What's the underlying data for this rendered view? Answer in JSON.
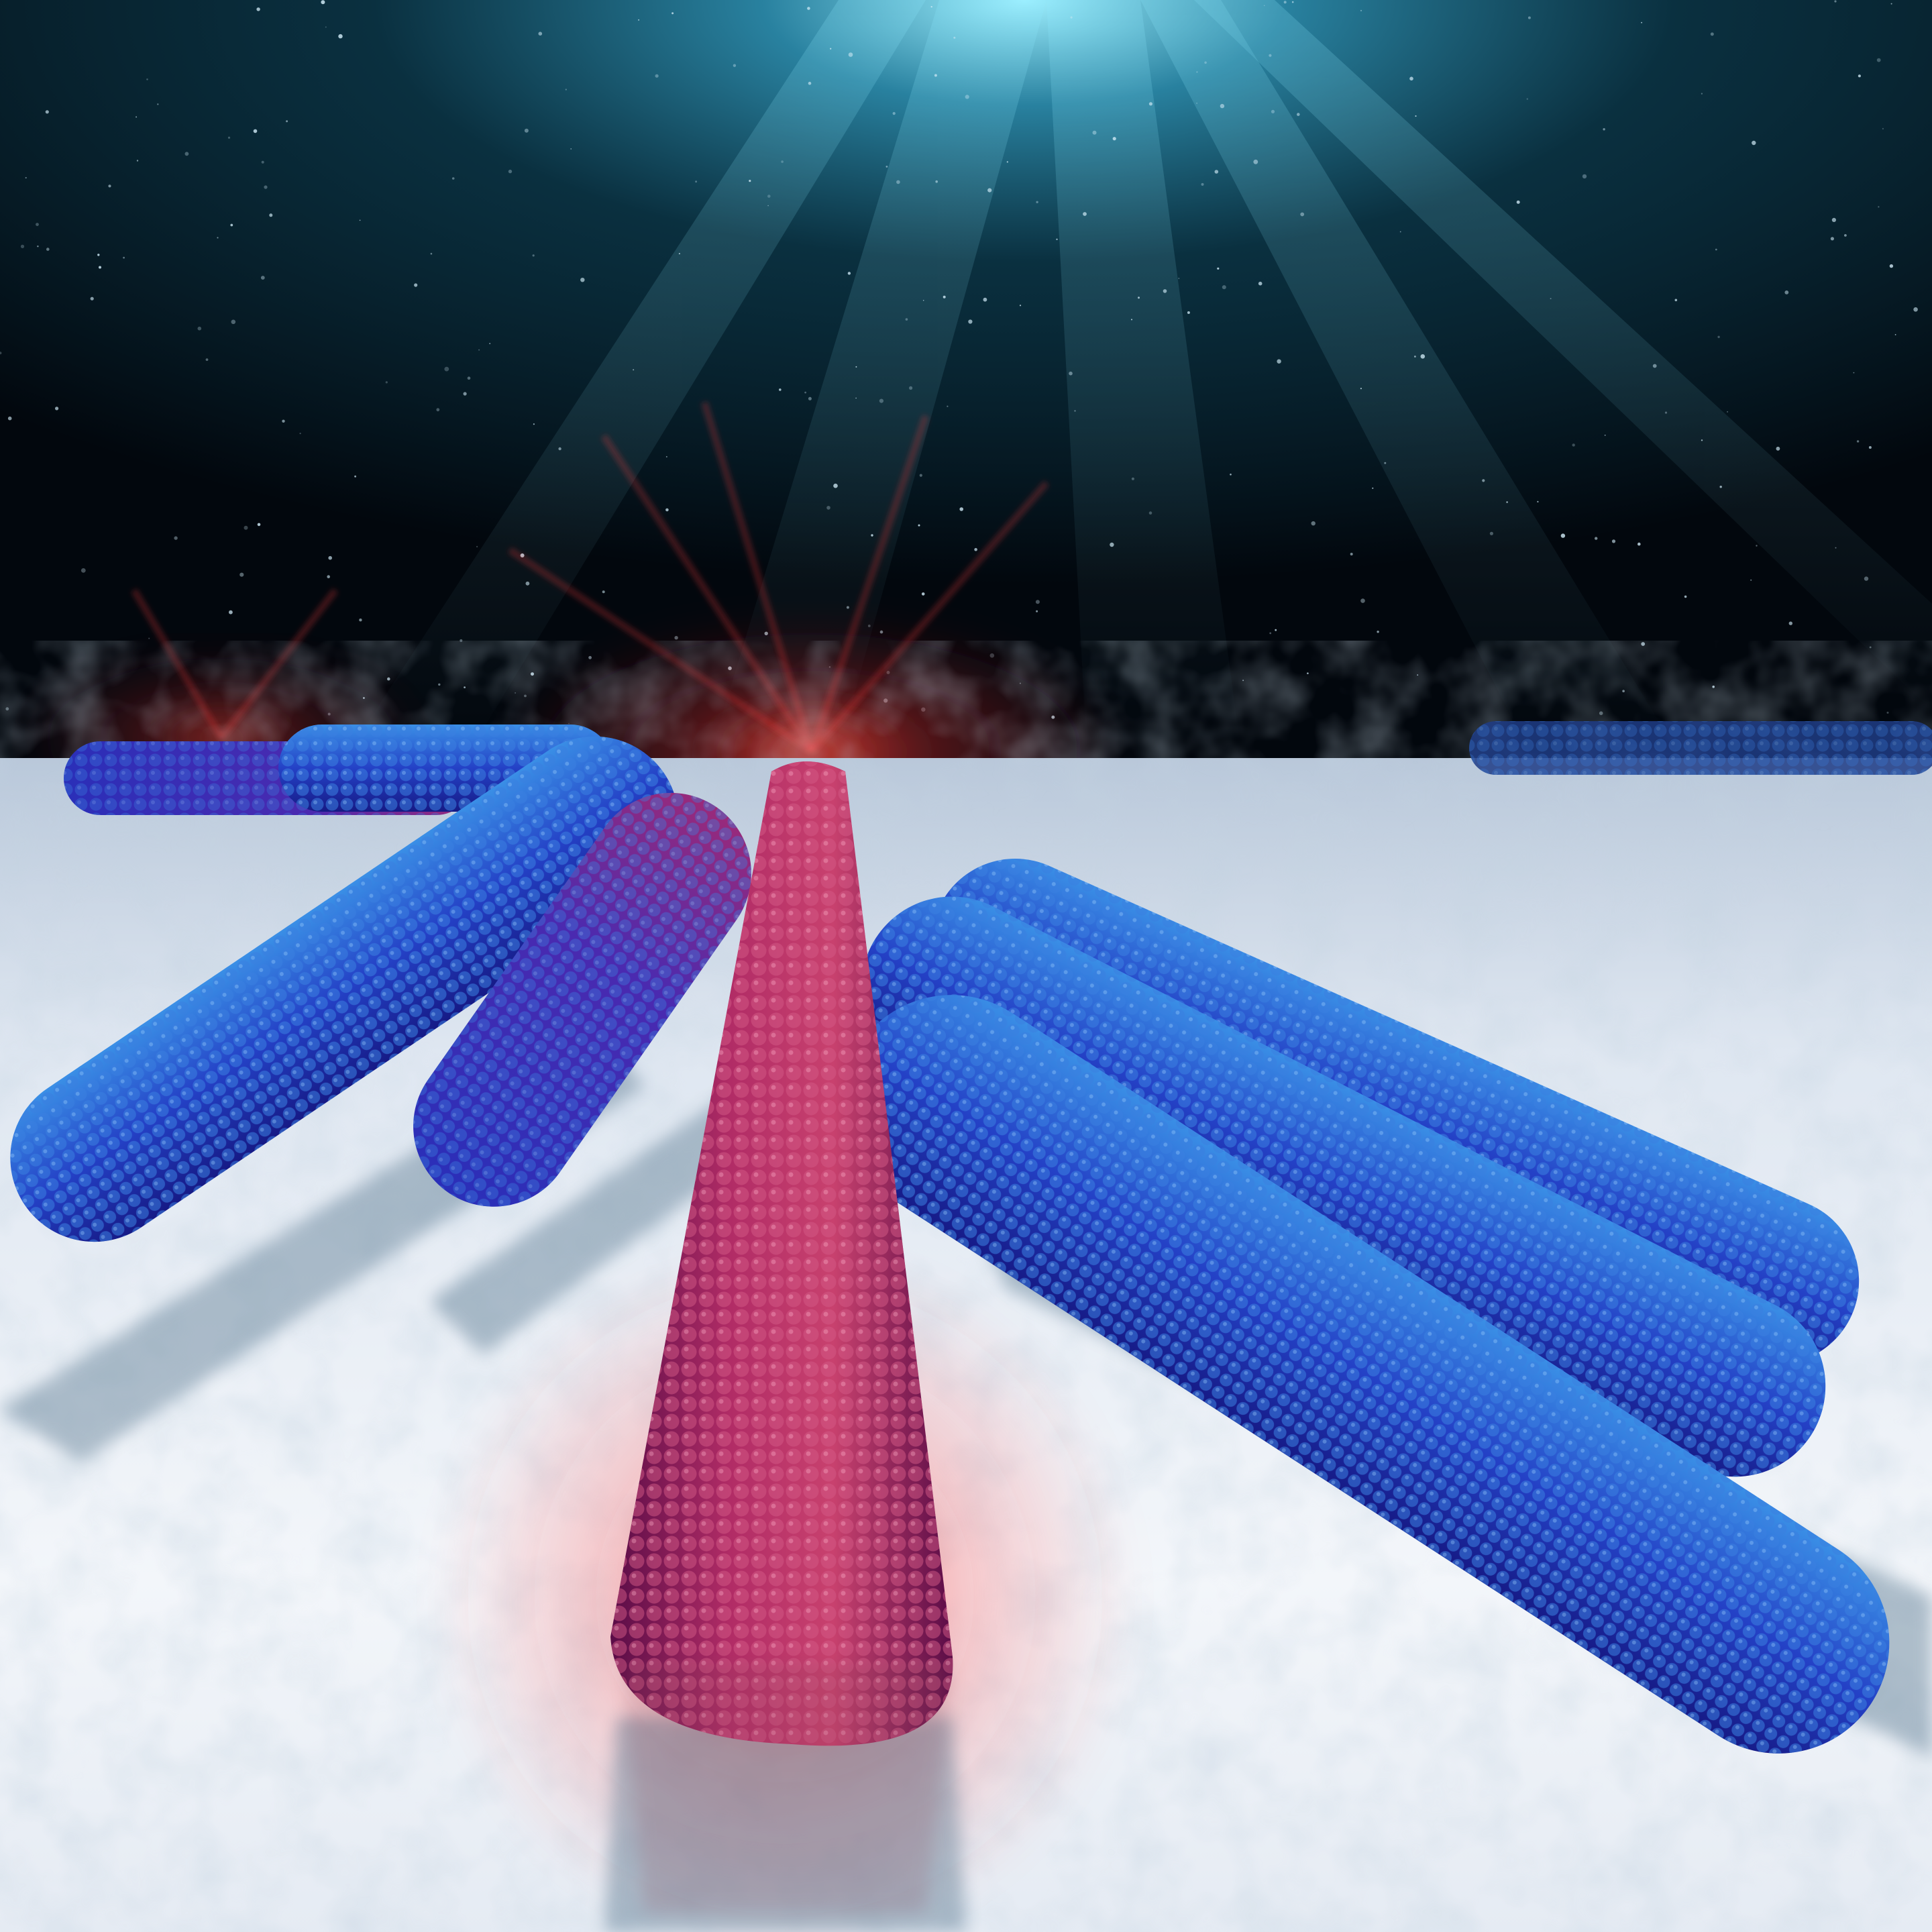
{
  "scene": {
    "description_tags": [
      "nanorods",
      "atomic-lattice",
      "substrate",
      "light-rays",
      "red-emission"
    ],
    "colors": {
      "sky_top": "#0a3b52",
      "sky_glow": "#7fe3ff",
      "sky_dark": "#02070d",
      "surface_light": "#f2f6fb",
      "surface_shade": "#a7b9cc",
      "rod_blue_dark": "#1b1f9e",
      "rod_blue_light": "#2f86e0",
      "rod_red_dark": "#6e1050",
      "rod_red_light": "#c23a6a",
      "red_glow": "#ff3a3a"
    },
    "rods": [
      {
        "name": "rod-back-left-1",
        "color": "blue-red"
      },
      {
        "name": "rod-back-left-2",
        "color": "blue"
      },
      {
        "name": "rod-back-right",
        "color": "blue"
      },
      {
        "name": "rod-left",
        "color": "blue"
      },
      {
        "name": "rod-center-left",
        "color": "blue-red"
      },
      {
        "name": "rod-center",
        "color": "red"
      },
      {
        "name": "rod-right-upper",
        "color": "blue"
      },
      {
        "name": "rod-right-middle",
        "color": "blue"
      },
      {
        "name": "rod-right-front",
        "color": "blue"
      }
    ]
  }
}
